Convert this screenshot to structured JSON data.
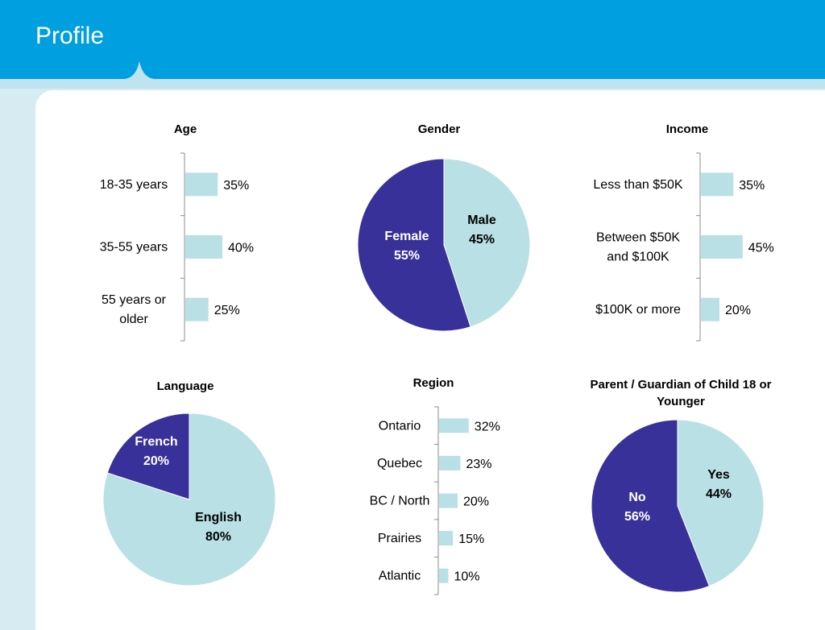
{
  "header": {
    "title": "Profile"
  },
  "colors": {
    "header_blue": "#009fe0",
    "light_series": "#b9e0e5",
    "dark_series": "#38319a",
    "axis": "#8c8c8c"
  },
  "chart_data": [
    {
      "id": "age",
      "type": "bar",
      "orientation": "horizontal",
      "title": "Age",
      "categories": [
        "18-35 years",
        "35-55 years",
        "55 years or older"
      ],
      "values": [
        35,
        40,
        25
      ],
      "value_labels": [
        "35%",
        "40%",
        "25%"
      ]
    },
    {
      "id": "gender",
      "type": "pie",
      "title": "Gender",
      "slices": [
        {
          "label": "Male",
          "value": 45,
          "value_label": "45%",
          "color": "#b9e0e5"
        },
        {
          "label": "Female",
          "value": 55,
          "value_label": "55%",
          "color": "#38319a"
        }
      ]
    },
    {
      "id": "income",
      "type": "bar",
      "orientation": "horizontal",
      "title": "Income",
      "categories": [
        "Less than $50K",
        "Between $50K and $100K",
        "$100K or more"
      ],
      "values": [
        35,
        45,
        20
      ],
      "value_labels": [
        "35%",
        "45%",
        "20%"
      ]
    },
    {
      "id": "language",
      "type": "pie",
      "title": "Language",
      "slices": [
        {
          "label": "English",
          "value": 80,
          "value_label": "80%",
          "color": "#b9e0e5"
        },
        {
          "label": "French",
          "value": 20,
          "value_label": "20%",
          "color": "#38319a"
        }
      ]
    },
    {
      "id": "region",
      "type": "bar",
      "orientation": "horizontal",
      "title": "Region",
      "categories": [
        "Ontario",
        "Quebec",
        "BC / North",
        "Prairies",
        "Atlantic"
      ],
      "values": [
        32,
        23,
        20,
        15,
        10
      ],
      "value_labels": [
        "32%",
        "23%",
        "20%",
        "15%",
        "10%"
      ]
    },
    {
      "id": "parent",
      "type": "pie",
      "title": "Parent / Guardian of Child 18 or Younger",
      "slices": [
        {
          "label": "Yes",
          "value": 44,
          "value_label": "44%",
          "color": "#b9e0e5"
        },
        {
          "label": "No",
          "value": 56,
          "value_label": "56%",
          "color": "#38319a"
        }
      ]
    }
  ]
}
